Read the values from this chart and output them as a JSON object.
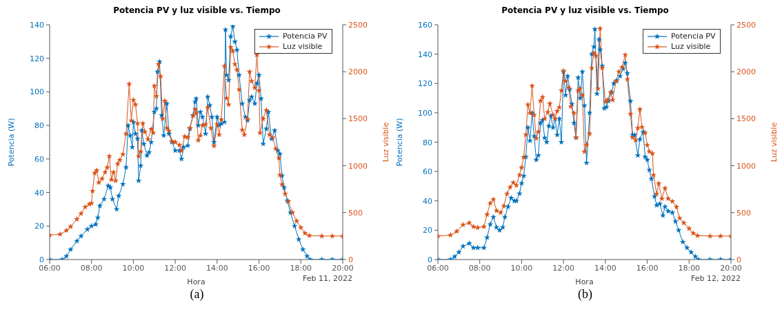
{
  "chart_data": [
    {
      "type": "line",
      "title": "Potencia PV y luz visible vs. Tiempo",
      "xlabel": "Hora",
      "ylabel": "Potencia (W)",
      "y2label": "Luz visible",
      "annotations": [
        "Feb 11, 2022",
        "(a)"
      ],
      "legend": "top right",
      "marker": "star",
      "line_style": "solid",
      "xlim": [
        6,
        20
      ],
      "xticks": [
        {
          "value": 6,
          "label": "06:00"
        },
        {
          "value": 8,
          "label": "08:00"
        },
        {
          "value": 10,
          "label": "10:00"
        },
        {
          "value": 12,
          "label": "12:00"
        },
        {
          "value": 14,
          "label": "14:00"
        },
        {
          "value": 16,
          "label": "16:00"
        },
        {
          "value": 18,
          "label": "18:00"
        },
        {
          "value": 20,
          "label": "20:00"
        }
      ],
      "ylim": [
        0,
        140
      ],
      "yticks": [
        0,
        20,
        40,
        60,
        80,
        100,
        120,
        140
      ],
      "y2lim": [
        0,
        2500
      ],
      "y2ticks": [
        0,
        500,
        1000,
        1500,
        2000,
        2500
      ],
      "series": [
        {
          "name": "Potencia PV",
          "color": "#0072bd",
          "x": [
            6,
            6.6,
            6.8,
            7,
            7.3,
            7.5,
            7.8,
            8,
            8.2,
            8.3,
            8.4,
            8.6,
            8.8,
            8.9,
            9,
            9.2,
            9.3,
            9.5,
            9.65,
            9.75,
            9.85,
            9.95,
            10,
            10.1,
            10.2,
            10.25,
            10.35,
            10.4,
            10.5,
            10.65,
            10.75,
            10.85,
            11,
            11.1,
            11.15,
            11.25,
            11.35,
            11.45,
            11.6,
            11.7,
            11.85,
            12,
            12.2,
            12.3,
            12.4,
            12.6,
            12.7,
            12.85,
            12.95,
            13,
            13.1,
            13.2,
            13.3,
            13.45,
            13.55,
            13.65,
            13.75,
            13.85,
            14,
            14.1,
            14.2,
            14.35,
            14.4,
            14.45,
            14.55,
            14.65,
            14.75,
            14.85,
            14.95,
            15.05,
            15.2,
            15.35,
            15.45,
            15.55,
            15.65,
            15.8,
            15.9,
            16,
            16.1,
            16.2,
            16.35,
            16.45,
            16.6,
            16.75,
            16.9,
            17,
            17.1,
            17.2,
            17.35,
            17.5,
            17.7,
            17.9,
            18.1,
            18.3,
            18.45,
            19,
            19.5,
            20
          ],
          "values": [
            0,
            0,
            2,
            6,
            11,
            14,
            18,
            20,
            21,
            25,
            32,
            36,
            44,
            43,
            36,
            30,
            38,
            45,
            55,
            80,
            74,
            67,
            82,
            75,
            72,
            47,
            56,
            77,
            69,
            62,
            64,
            70,
            88,
            90,
            112,
            118,
            86,
            74,
            93,
            75,
            70,
            65,
            65,
            60,
            67,
            68,
            78,
            86,
            94,
            96,
            80,
            88,
            85,
            75,
            97,
            92,
            85,
            70,
            85,
            80,
            81,
            82,
            137,
            110,
            107,
            133,
            139,
            130,
            125,
            110,
            93,
            85,
            83,
            95,
            97,
            93,
            105,
            110,
            96,
            69,
            78,
            88,
            72,
            77,
            65,
            63,
            50,
            43,
            35,
            28,
            20,
            12,
            6,
            2,
            0,
            0,
            0,
            0
          ],
          "axis": "y"
        },
        {
          "name": "Luz visible",
          "color": "#d95319",
          "x": [
            6,
            6.5,
            6.8,
            7,
            7.3,
            7.5,
            7.7,
            7.9,
            8,
            8.05,
            8.15,
            8.25,
            8.35,
            8.5,
            8.65,
            8.75,
            8.85,
            8.95,
            9.05,
            9.15,
            9.25,
            9.35,
            9.5,
            9.65,
            9.8,
            9.9,
            10,
            10.1,
            10.2,
            10.25,
            10.35,
            10.45,
            10.55,
            10.7,
            10.85,
            10.95,
            11,
            11.1,
            11.2,
            11.3,
            11.4,
            11.5,
            11.6,
            11.7,
            11.85,
            12,
            12.2,
            12.3,
            12.45,
            12.6,
            12.7,
            12.85,
            12.95,
            13,
            13.1,
            13.2,
            13.3,
            13.45,
            13.55,
            13.7,
            13.85,
            14,
            14.1,
            14.2,
            14.35,
            14.45,
            14.55,
            14.65,
            14.75,
            14.85,
            14.95,
            15.05,
            15.2,
            15.3,
            15.45,
            15.55,
            15.65,
            15.8,
            15.9,
            16,
            16.05,
            16.2,
            16.35,
            16.5,
            16.65,
            16.8,
            16.95,
            17,
            17.1,
            17.25,
            17.4,
            17.6,
            17.8,
            18,
            18.2,
            18.4,
            19,
            19.5,
            20
          ],
          "values": [
            260,
            270,
            310,
            350,
            430,
            490,
            560,
            590,
            600,
            730,
            920,
            950,
            820,
            860,
            930,
            980,
            1100,
            850,
            930,
            840,
            1020,
            1060,
            1120,
            1340,
            1870,
            1480,
            1700,
            1650,
            1450,
            1100,
            1150,
            1450,
            1360,
            1280,
            1390,
            1350,
            1850,
            1740,
            2080,
            1950,
            1500,
            1690,
            1400,
            1370,
            1260,
            1250,
            1220,
            1160,
            1310,
            1300,
            1400,
            1530,
            1600,
            1560,
            1270,
            1320,
            1430,
            1440,
            1620,
            1400,
            1210,
            1440,
            1330,
            1490,
            2060,
            1720,
            1650,
            2260,
            2220,
            2080,
            2020,
            1810,
            1380,
            1330,
            1500,
            2000,
            1900,
            1830,
            2180,
            1800,
            1350,
            1500,
            1590,
            1330,
            1300,
            1180,
            1080,
            900,
            800,
            700,
            620,
            500,
            410,
            340,
            280,
            255,
            250,
            250,
            250
          ],
          "axis": "y2"
        }
      ]
    },
    {
      "type": "line",
      "title": "Potencia PV y luz visible vs. Tiempo",
      "xlabel": "Hora",
      "ylabel": "Potencia (W)",
      "y2label": "Luz visible",
      "annotations": [
        "Feb 12, 2022",
        "(b)"
      ],
      "legend": "top right",
      "marker": "star",
      "line_style": "solid",
      "xlim": [
        6,
        20
      ],
      "xticks": [
        {
          "value": 6,
          "label": "06:00"
        },
        {
          "value": 8,
          "label": "08:00"
        },
        {
          "value": 10,
          "label": "10:00"
        },
        {
          "value": 12,
          "label": "12:00"
        },
        {
          "value": 14,
          "label": "14:00"
        },
        {
          "value": 16,
          "label": "16:00"
        },
        {
          "value": 18,
          "label": "18:00"
        },
        {
          "value": 20,
          "label": "20:00"
        }
      ],
      "ylim": [
        0,
        160
      ],
      "yticks": [
        0,
        20,
        40,
        60,
        80,
        100,
        120,
        140,
        160
      ],
      "y2lim": [
        0,
        2500
      ],
      "y2ticks": [
        0,
        500,
        1000,
        1500,
        2000,
        2500
      ],
      "series": [
        {
          "name": "Potencia PV",
          "color": "#0072bd",
          "x": [
            6,
            6.6,
            6.8,
            7,
            7.2,
            7.5,
            7.7,
            7.9,
            8.2,
            8.35,
            8.5,
            8.65,
            8.8,
            8.95,
            9.1,
            9.2,
            9.35,
            9.5,
            9.65,
            9.75,
            9.9,
            10,
            10.1,
            10.2,
            10.3,
            10.4,
            10.5,
            10.6,
            10.7,
            10.8,
            10.9,
            11,
            11.1,
            11.2,
            11.3,
            11.4,
            11.5,
            11.6,
            11.7,
            11.8,
            11.9,
            12,
            12.1,
            12.2,
            12.3,
            12.4,
            12.5,
            12.6,
            12.7,
            12.8,
            12.9,
            13,
            13.1,
            13.25,
            13.35,
            13.45,
            13.5,
            13.6,
            13.7,
            13.75,
            13.85,
            13.95,
            14.05,
            14.15,
            14.3,
            14.4,
            14.55,
            14.7,
            14.85,
            14.95,
            15.05,
            15.2,
            15.3,
            15.4,
            15.55,
            15.65,
            15.8,
            15.9,
            16,
            16.1,
            16.2,
            16.35,
            16.45,
            16.6,
            16.75,
            16.85,
            17,
            17.2,
            17.35,
            17.5,
            17.7,
            17.9,
            18.1,
            18.3,
            18.45,
            19,
            19.5,
            20
          ],
          "values": [
            0,
            0,
            2,
            5,
            9,
            11,
            8,
            8,
            8,
            15,
            24,
            29,
            22,
            20,
            22,
            29,
            36,
            42,
            40,
            40,
            45,
            52,
            57,
            70,
            90,
            81,
            100,
            84,
            68,
            71,
            93,
            95,
            83,
            80,
            91,
            98,
            90,
            96,
            85,
            96,
            80,
            128,
            112,
            125,
            116,
            106,
            93,
            83,
            124,
            110,
            128,
            105,
            66,
            100,
            140,
            145,
            157,
            113,
            150,
            143,
            132,
            103,
            104,
            108,
            114,
            120,
            122,
            125,
            130,
            134,
            127,
            108,
            85,
            85,
            71,
            82,
            87,
            70,
            68,
            61,
            55,
            43,
            37,
            38,
            30,
            36,
            33,
            32,
            26,
            20,
            12,
            8,
            5,
            2,
            0,
            0,
            0,
            0
          ],
          "axis": "y"
        },
        {
          "name": "Luz visible",
          "color": "#d95319",
          "x": [
            6,
            6.6,
            6.9,
            7.2,
            7.5,
            7.7,
            7.9,
            8.2,
            8.35,
            8.5,
            8.65,
            8.8,
            9,
            9.15,
            9.3,
            9.45,
            9.6,
            9.75,
            9.9,
            10,
            10.1,
            10.2,
            10.3,
            10.4,
            10.5,
            10.6,
            10.7,
            10.8,
            10.9,
            11,
            11.1,
            11.25,
            11.35,
            11.5,
            11.6,
            11.7,
            11.8,
            11.9,
            12,
            12.1,
            12.25,
            12.35,
            12.5,
            12.6,
            12.7,
            12.8,
            12.9,
            13,
            13.1,
            13.25,
            13.35,
            13.45,
            13.55,
            13.65,
            13.75,
            13.85,
            14,
            14.1,
            14.25,
            14.35,
            14.5,
            14.65,
            14.8,
            14.95,
            15.05,
            15.2,
            15.3,
            15.45,
            15.55,
            15.65,
            15.75,
            15.9,
            16,
            16.1,
            16.25,
            16.3,
            16.45,
            16.55,
            16.7,
            16.85,
            17,
            17.2,
            17.4,
            17.55,
            17.75,
            18,
            18.2,
            18.4,
            19,
            19.5,
            20
          ],
          "values": [
            250,
            260,
            300,
            370,
            390,
            350,
            340,
            350,
            480,
            600,
            640,
            520,
            500,
            570,
            700,
            770,
            820,
            790,
            900,
            980,
            1090,
            1330,
            1650,
            1560,
            1850,
            1540,
            1290,
            1360,
            1690,
            1730,
            1500,
            1570,
            1660,
            1540,
            1500,
            1580,
            1620,
            1800,
            2010,
            1900,
            1830,
            1630,
            1560,
            1300,
            1800,
            1820,
            1750,
            1150,
            1220,
            1340,
            2040,
            2200,
            2170,
            1820,
            2460,
            2040,
            1680,
            1700,
            1780,
            1700,
            1900,
            2000,
            2050,
            2180,
            1920,
            1550,
            1300,
            1270,
            1400,
            1600,
            1410,
            1350,
            1220,
            1150,
            1130,
            900,
            700,
            810,
            650,
            760,
            650,
            620,
            560,
            440,
            390,
            330,
            280,
            255,
            250,
            250,
            250
          ],
          "axis": "y2"
        }
      ]
    }
  ]
}
